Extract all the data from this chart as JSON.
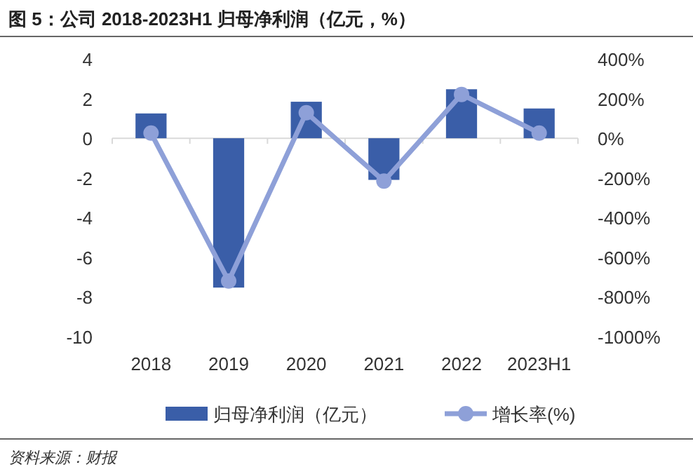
{
  "chart_data": {
    "type": "bar",
    "title": "图 5：公司 2018-2023H1 归母净利润（亿元，%）",
    "categories": [
      "2018",
      "2019",
      "2020",
      "2021",
      "2022",
      "2023H1"
    ],
    "series": [
      {
        "name": "归母净利润（亿元）",
        "color": "#3a5ea8",
        "values": [
          1.25,
          -7.53,
          1.84,
          -2.1,
          2.47,
          1.5
        ]
      },
      {
        "name": "增长率(%)",
        "type": "line",
        "axis": "y2",
        "color": "#8ea0d8",
        "marker": "circle",
        "values": [
          26,
          -720,
          129,
          -216,
          221,
          26
        ]
      }
    ],
    "ylim": [
      -10,
      4
    ],
    "yticks": [
      -10,
      -8,
      -6,
      -4,
      -2,
      0,
      2,
      4
    ],
    "y2lim": [
      -1000,
      400
    ],
    "y2ticks": [
      {
        "value": -1000,
        "label": "-1000%"
      },
      {
        "value": -800,
        "label": "-800%"
      },
      {
        "value": -600,
        "label": "-600%"
      },
      {
        "value": -400,
        "label": "-400%"
      },
      {
        "value": -200,
        "label": "-200%"
      },
      {
        "value": 0,
        "label": "0%"
      },
      {
        "value": 200,
        "label": "200%"
      },
      {
        "value": 400,
        "label": "400%"
      }
    ],
    "legend": "bottom",
    "annotations": [
      "资料来源：财报"
    ]
  }
}
